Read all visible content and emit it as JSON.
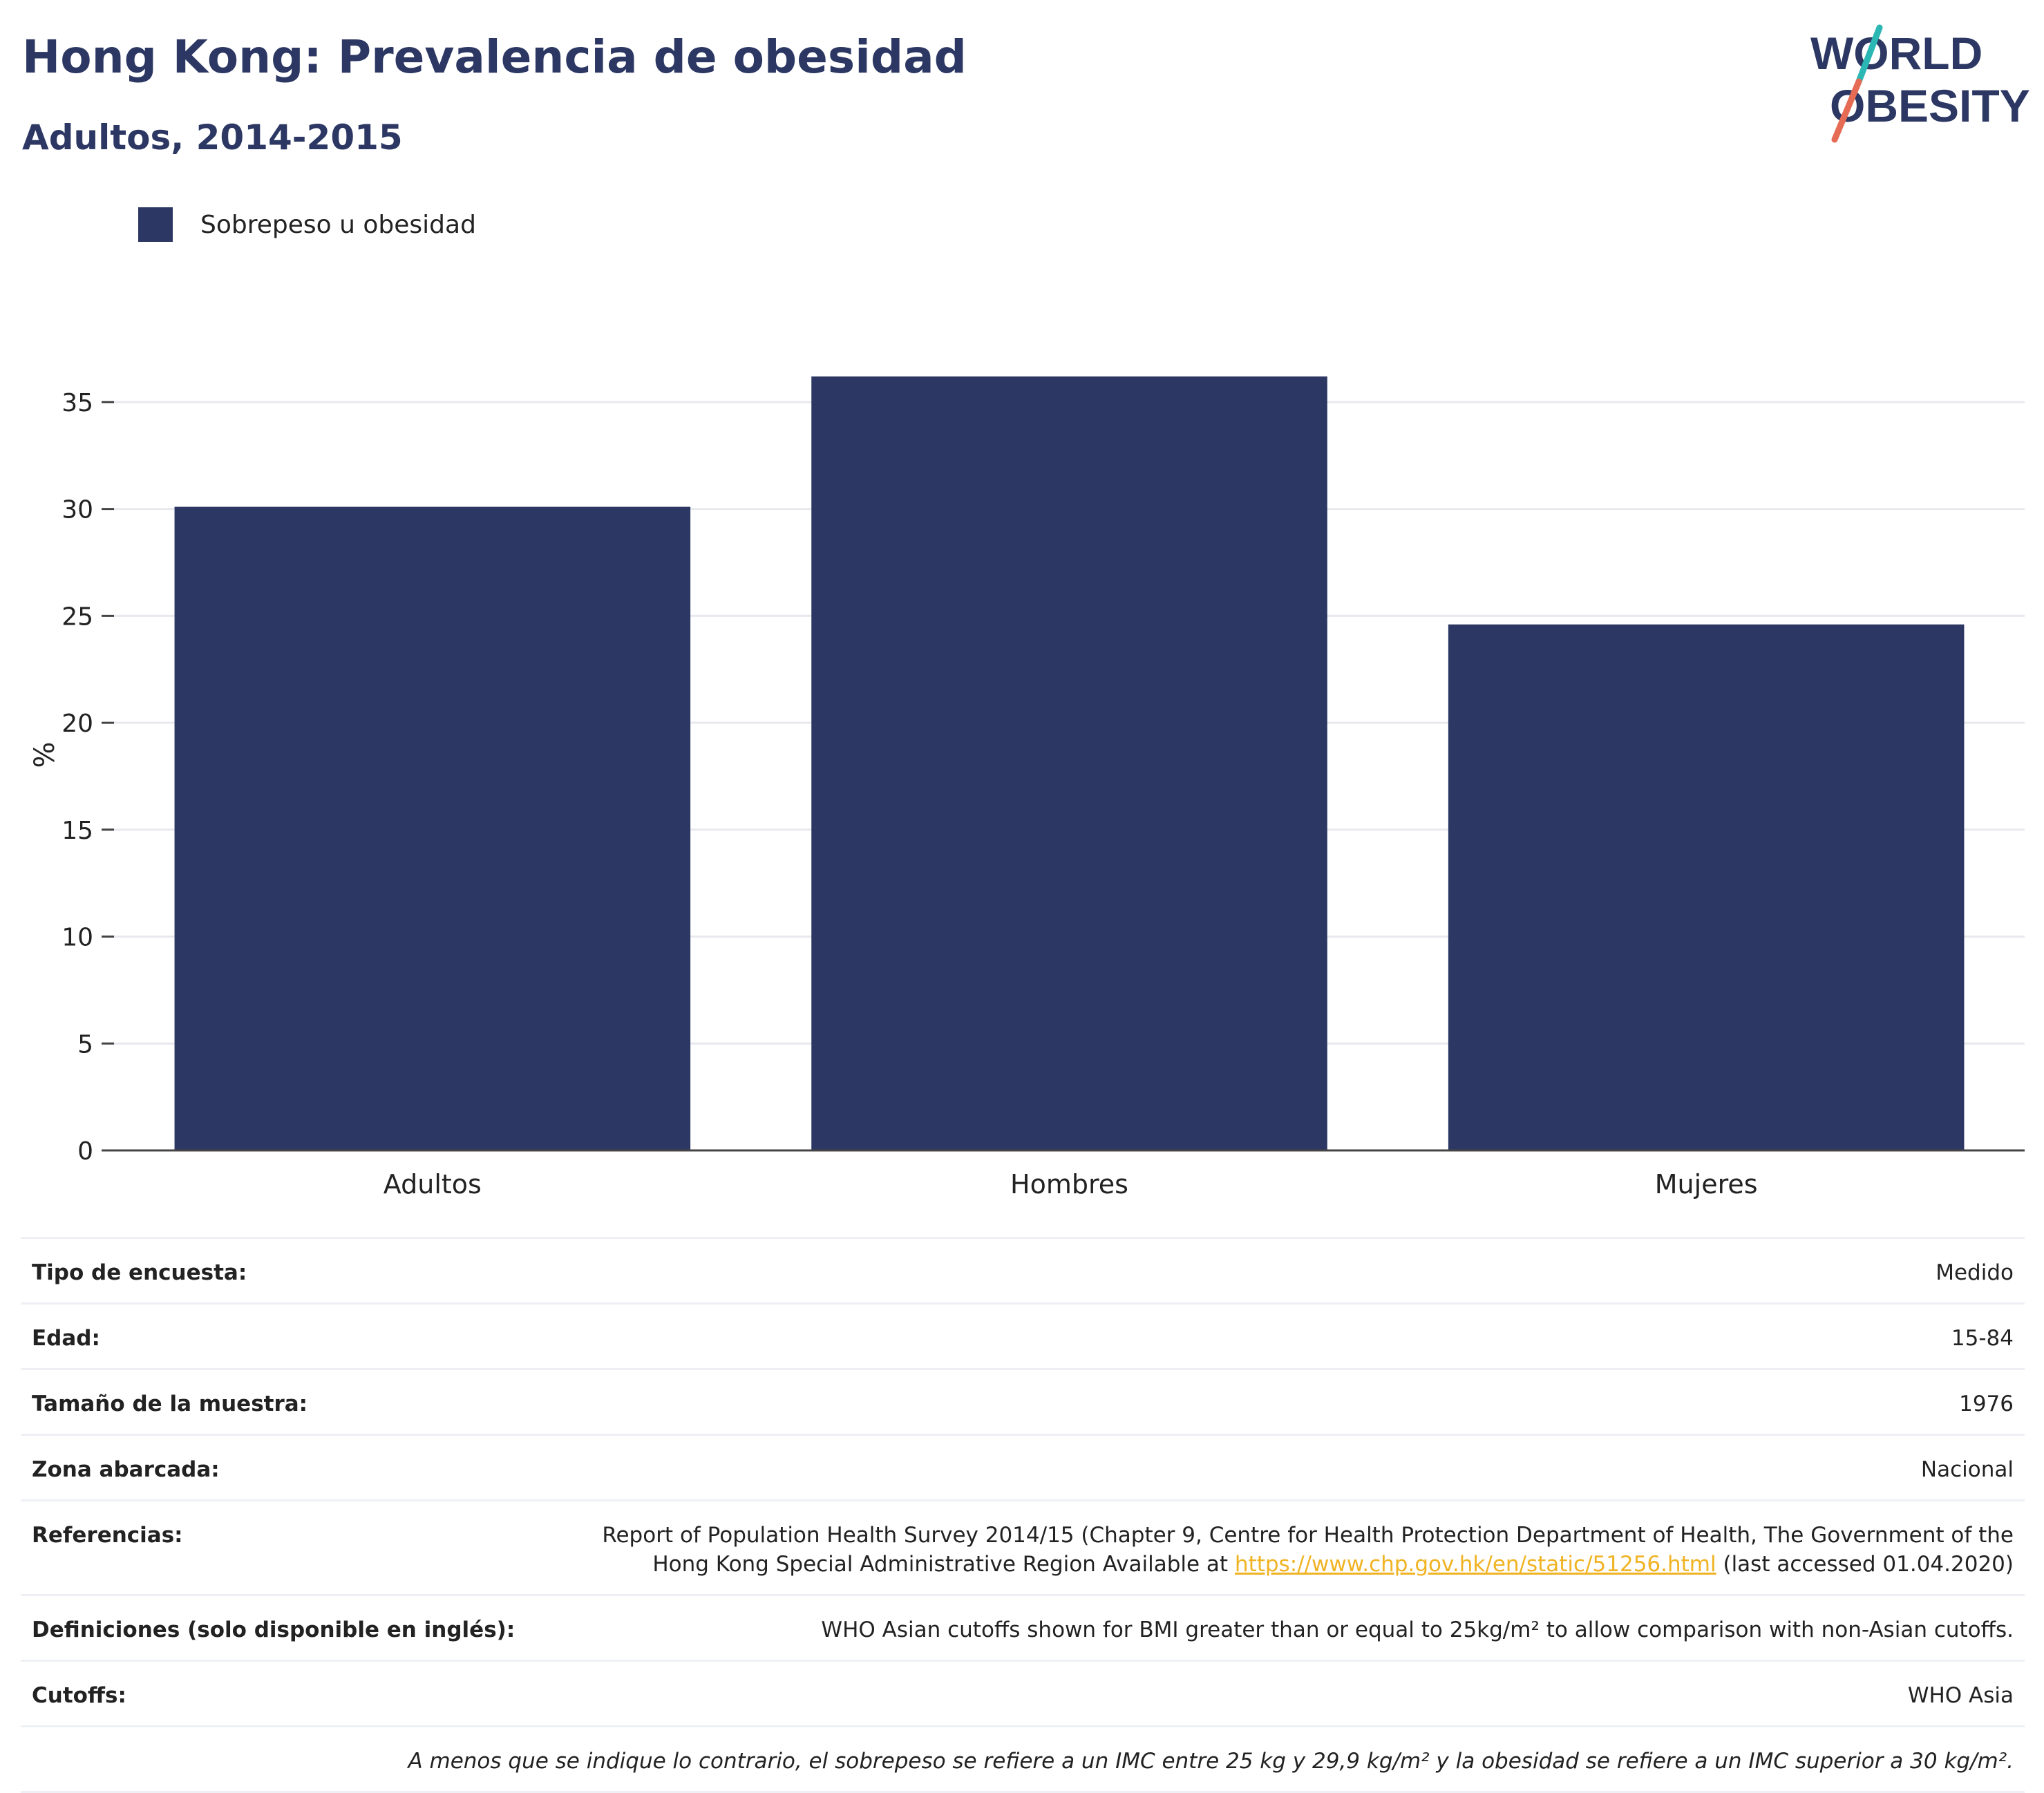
{
  "header": {
    "title": "Hong Kong: Prevalencia de obesidad",
    "subtitle": "Adultos, 2014-2015"
  },
  "logo": {
    "line1": "WORLD",
    "line2": "OBESITY"
  },
  "colors": {
    "bar": "#2c3863",
    "title": "#2c3863",
    "grid": "#e8e9ee",
    "link": "#f0b323",
    "logo_teal": "#2bb7b3",
    "logo_coral": "#e66b55"
  },
  "chart_data": {
    "type": "bar",
    "categories": [
      "Adultos",
      "Hombres",
      "Mujeres"
    ],
    "series": [
      {
        "name": "Sobrepeso u obesidad",
        "values": [
          30.1,
          36.2,
          24.6
        ]
      }
    ],
    "ylabel": "%",
    "xlabel": "",
    "ylim": [
      0,
      37
    ],
    "yticks": [
      0,
      5,
      10,
      15,
      20,
      25,
      30,
      35
    ],
    "grid": true,
    "legend_position": "top-left"
  },
  "info": {
    "survey_type_label": "Tipo de encuesta:",
    "survey_type_value": "Medido",
    "age_label": "Edad:",
    "age_value": "15-84",
    "sample_label": "Tamaño de la muestra:",
    "sample_value": "1976",
    "area_label": "Zona abarcada:",
    "area_value": "Nacional",
    "refs_label": "Referencias:",
    "refs_line1": "Report of Population Health Survey 2014/15 (Chapter 9, Centre for Health Protection Department of Health, The Government of the",
    "refs_line2_pre": "Hong Kong Special Administrative Region Available at ",
    "refs_link": "https://www.chp.gov.hk/en/static/51256.html",
    "refs_line2_post": " (last accessed 01.04.2020)",
    "defs_label": "Definiciones (solo disponible en inglés):",
    "defs_value": "WHO Asian cutoffs shown for BMI greater than or equal to 25kg/m² to allow comparison with non-Asian cutoffs.",
    "cutoffs_label": "Cutoffs:",
    "cutoffs_value": "WHO Asia",
    "note": "A menos que se indique lo contrario, el sobrepeso se refiere a un IMC entre 25 kg y 29,9 kg/m² y la obesidad se refiere a un IMC superior a 30 kg/m²."
  }
}
